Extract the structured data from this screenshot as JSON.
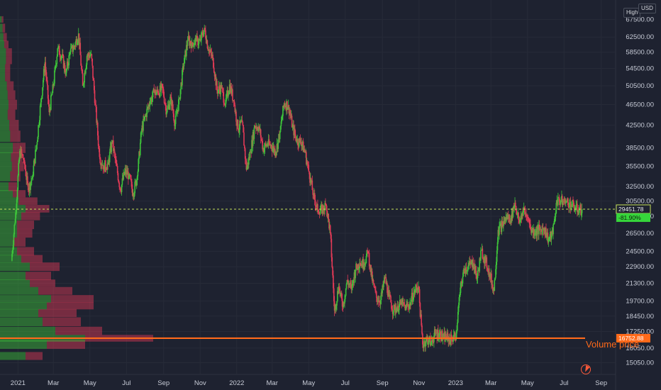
{
  "header": {
    "scale_label": "High",
    "currency_label": "USD"
  },
  "chart_data": {
    "type": "candlestick",
    "symbol_currency": "USD",
    "x_ticks": [
      "2021",
      "Mar",
      "May",
      "Jul",
      "Sep",
      "Nov",
      "2022",
      "Mar",
      "May",
      "Jul",
      "Sep",
      "Nov",
      "2023",
      "Mar",
      "May",
      "Jul",
      "Sep"
    ],
    "y_ticks": [
      15050,
      16050,
      17250,
      18450,
      19700,
      21300,
      22900,
      24500,
      26500,
      28550,
      30500,
      32500,
      35500,
      38500,
      42500,
      46500,
      50500,
      54500,
      58500,
      62500,
      67500
    ],
    "y_scale": "log",
    "ylim": [
      14300,
      69500
    ],
    "grid": true,
    "last_price": {
      "label": "29451.78",
      "value": 29451.78
    },
    "change_label": "-81.90%",
    "volume_price": {
      "label": "16752.88",
      "value": 16752.88
    },
    "annotation": "Volume price",
    "colors": {
      "up": "#3ec43a",
      "down": "#e23a56",
      "last_price_line": "#c8e35a",
      "volume_price_line": "#ff6a1a",
      "change_badge": "#36d63b"
    },
    "ohlc_weekly_close": [
      [
        "2020-12-21",
        23500
      ],
      [
        "2020-12-28",
        29000
      ],
      [
        "2021-01-04",
        38000
      ],
      [
        "2021-01-11",
        36500
      ],
      [
        "2021-01-18",
        32000
      ],
      [
        "2021-01-25",
        34000
      ],
      [
        "2021-02-01",
        39000
      ],
      [
        "2021-02-08",
        47000
      ],
      [
        "2021-02-15",
        56000
      ],
      [
        "2021-02-22",
        45000
      ],
      [
        "2021-03-01",
        50500
      ],
      [
        "2021-03-08",
        59500
      ],
      [
        "2021-03-15",
        57500
      ],
      [
        "2021-03-22",
        53500
      ],
      [
        "2021-03-29",
        58500
      ],
      [
        "2021-04-05",
        60000
      ],
      [
        "2021-04-12",
        63500
      ],
      [
        "2021-04-19",
        50500
      ],
      [
        "2021-04-26",
        57500
      ],
      [
        "2021-05-03",
        58000
      ],
      [
        "2021-05-10",
        46500
      ],
      [
        "2021-05-17",
        37000
      ],
      [
        "2021-05-24",
        35500
      ],
      [
        "2021-05-31",
        35800
      ],
      [
        "2021-06-07",
        39500
      ],
      [
        "2021-06-14",
        35600
      ],
      [
        "2021-06-21",
        32000
      ],
      [
        "2021-06-28",
        34700
      ],
      [
        "2021-07-05",
        34200
      ],
      [
        "2021-07-12",
        31500
      ],
      [
        "2021-07-19",
        34000
      ],
      [
        "2021-07-26",
        41500
      ],
      [
        "2021-08-02",
        44500
      ],
      [
        "2021-08-09",
        47000
      ],
      [
        "2021-08-16",
        49000
      ],
      [
        "2021-08-23",
        49000
      ],
      [
        "2021-08-30",
        50000
      ],
      [
        "2021-09-06",
        45000
      ],
      [
        "2021-09-13",
        48000
      ],
      [
        "2021-09-20",
        42700
      ],
      [
        "2021-09-27",
        47800
      ],
      [
        "2021-10-04",
        55000
      ],
      [
        "2021-10-11",
        61500
      ],
      [
        "2021-10-18",
        61000
      ],
      [
        "2021-10-25",
        61300
      ],
      [
        "2021-11-01",
        61500
      ],
      [
        "2021-11-08",
        65000
      ],
      [
        "2021-11-15",
        59000
      ],
      [
        "2021-11-22",
        57000
      ],
      [
        "2021-11-29",
        49500
      ],
      [
        "2021-12-06",
        50000
      ],
      [
        "2021-12-13",
        46700
      ],
      [
        "2021-12-20",
        50800
      ],
      [
        "2021-12-27",
        47200
      ],
      [
        "2022-01-03",
        41800
      ],
      [
        "2022-01-10",
        43100
      ],
      [
        "2022-01-17",
        35000
      ],
      [
        "2022-01-24",
        37900
      ],
      [
        "2022-01-31",
        42400
      ],
      [
        "2022-02-07",
        42200
      ],
      [
        "2022-02-14",
        38400
      ],
      [
        "2022-02-21",
        39100
      ],
      [
        "2022-02-28",
        38800
      ],
      [
        "2022-03-07",
        37800
      ],
      [
        "2022-03-14",
        41300
      ],
      [
        "2022-03-21",
        46800
      ],
      [
        "2022-03-28",
        46400
      ],
      [
        "2022-04-04",
        42200
      ],
      [
        "2022-04-11",
        39700
      ],
      [
        "2022-04-18",
        39500
      ],
      [
        "2022-04-25",
        37700
      ],
      [
        "2022-05-02",
        34300
      ],
      [
        "2022-05-09",
        31300
      ],
      [
        "2022-05-16",
        29400
      ],
      [
        "2022-05-23",
        29400
      ],
      [
        "2022-05-30",
        29900
      ],
      [
        "2022-06-06",
        26600
      ],
      [
        "2022-06-13",
        18900
      ],
      [
        "2022-06-20",
        21000
      ],
      [
        "2022-06-27",
        19200
      ],
      [
        "2022-07-04",
        21600
      ],
      [
        "2022-07-11",
        20800
      ],
      [
        "2022-07-18",
        22600
      ],
      [
        "2022-07-25",
        23300
      ],
      [
        "2022-08-01",
        23200
      ],
      [
        "2022-08-08",
        24400
      ],
      [
        "2022-08-15",
        21500
      ],
      [
        "2022-08-22",
        20000
      ],
      [
        "2022-08-29",
        19800
      ],
      [
        "2022-09-05",
        21800
      ],
      [
        "2022-09-12",
        20100
      ],
      [
        "2022-09-19",
        18900
      ],
      [
        "2022-09-26",
        19300
      ],
      [
        "2022-10-03",
        19400
      ],
      [
        "2022-10-10",
        19200
      ],
      [
        "2022-10-17",
        19500
      ],
      [
        "2022-10-24",
        20600
      ],
      [
        "2022-10-31",
        21000
      ],
      [
        "2022-11-07",
        16300
      ],
      [
        "2022-11-14",
        16700
      ],
      [
        "2022-11-21",
        16500
      ],
      [
        "2022-11-28",
        17100
      ],
      [
        "2022-12-05",
        17100
      ],
      [
        "2022-12-12",
        16800
      ],
      [
        "2022-12-19",
        16800
      ],
      [
        "2022-12-26",
        16600
      ],
      [
        "2023-01-02",
        17100
      ],
      [
        "2023-01-09",
        20900
      ],
      [
        "2023-01-16",
        22700
      ],
      [
        "2023-01-23",
        23000
      ],
      [
        "2023-01-30",
        23300
      ],
      [
        "2023-02-06",
        21800
      ],
      [
        "2023-02-13",
        24600
      ],
      [
        "2023-02-20",
        23500
      ],
      [
        "2023-02-27",
        22200
      ],
      [
        "2023-03-06",
        20600
      ],
      [
        "2023-03-13",
        26900
      ],
      [
        "2023-03-20",
        27500
      ],
      [
        "2023-03-27",
        28500
      ],
      [
        "2023-04-03",
        28300
      ],
      [
        "2023-04-10",
        30300
      ],
      [
        "2023-04-17",
        27800
      ],
      [
        "2023-04-24",
        29300
      ],
      [
        "2023-05-01",
        28400
      ],
      [
        "2023-05-08",
        26800
      ],
      [
        "2023-05-15",
        26800
      ],
      [
        "2023-05-22",
        26900
      ],
      [
        "2023-05-29",
        27100
      ],
      [
        "2023-06-05",
        25800
      ],
      [
        "2023-06-12",
        26400
      ],
      [
        "2023-06-19",
        30600
      ],
      [
        "2023-06-26",
        30500
      ],
      [
        "2023-07-03",
        30300
      ],
      [
        "2023-07-10",
        30300
      ],
      [
        "2023-07-17",
        29800
      ],
      [
        "2023-07-24",
        29300
      ],
      [
        "2023-07-31",
        29450
      ]
    ],
    "volume_profile": [
      {
        "price": 15500,
        "up": 0.3,
        "down": 0.2
      },
      {
        "price": 16300,
        "up": 0.55,
        "down": 0.45
      },
      {
        "price": 16750,
        "up": 1.0,
        "down": 0.8
      },
      {
        "price": 17300,
        "up": 0.65,
        "down": 0.55
      },
      {
        "price": 18000,
        "up": 0.5,
        "down": 0.45
      },
      {
        "price": 18700,
        "up": 0.45,
        "down": 0.45
      },
      {
        "price": 19300,
        "up": 0.55,
        "down": 0.55
      },
      {
        "price": 19900,
        "up": 0.6,
        "down": 0.5
      },
      {
        "price": 20600,
        "up": 0.45,
        "down": 0.4
      },
      {
        "price": 21300,
        "up": 0.35,
        "down": 0.3
      },
      {
        "price": 22000,
        "up": 0.3,
        "down": 0.3
      },
      {
        "price": 22900,
        "up": 0.35,
        "down": 0.35
      },
      {
        "price": 23700,
        "up": 0.25,
        "down": 0.25
      },
      {
        "price": 24500,
        "up": 0.2,
        "down": 0.2
      },
      {
        "price": 25500,
        "up": 0.15,
        "down": 0.15
      },
      {
        "price": 26500,
        "up": 0.2,
        "down": 0.18
      },
      {
        "price": 27500,
        "up": 0.2,
        "down": 0.2
      },
      {
        "price": 28550,
        "up": 0.25,
        "down": 0.22
      },
      {
        "price": 29500,
        "up": 0.3,
        "down": 0.28
      },
      {
        "price": 30500,
        "up": 0.22,
        "down": 0.22
      },
      {
        "price": 31500,
        "up": 0.15,
        "down": 0.15
      },
      {
        "price": 32500,
        "up": 0.1,
        "down": 0.1
      },
      {
        "price": 34000,
        "up": 0.12,
        "down": 0.12
      },
      {
        "price": 35500,
        "up": 0.14,
        "down": 0.14
      },
      {
        "price": 37000,
        "up": 0.13,
        "down": 0.13
      },
      {
        "price": 38500,
        "up": 0.15,
        "down": 0.15
      },
      {
        "price": 40500,
        "up": 0.12,
        "down": 0.12
      },
      {
        "price": 42500,
        "up": 0.11,
        "down": 0.11
      },
      {
        "price": 44500,
        "up": 0.09,
        "down": 0.09
      },
      {
        "price": 46500,
        "up": 0.1,
        "down": 0.1
      },
      {
        "price": 48500,
        "up": 0.09,
        "down": 0.09
      },
      {
        "price": 50500,
        "up": 0.08,
        "down": 0.08
      },
      {
        "price": 52500,
        "up": 0.06,
        "down": 0.06
      },
      {
        "price": 54500,
        "up": 0.06,
        "down": 0.06
      },
      {
        "price": 56500,
        "up": 0.07,
        "down": 0.07
      },
      {
        "price": 58500,
        "up": 0.07,
        "down": 0.07
      },
      {
        "price": 60500,
        "up": 0.05,
        "down": 0.05
      },
      {
        "price": 62500,
        "up": 0.04,
        "down": 0.04
      },
      {
        "price": 65000,
        "up": 0.03,
        "down": 0.03
      },
      {
        "price": 67500,
        "up": 0.02,
        "down": 0.02
      }
    ]
  }
}
